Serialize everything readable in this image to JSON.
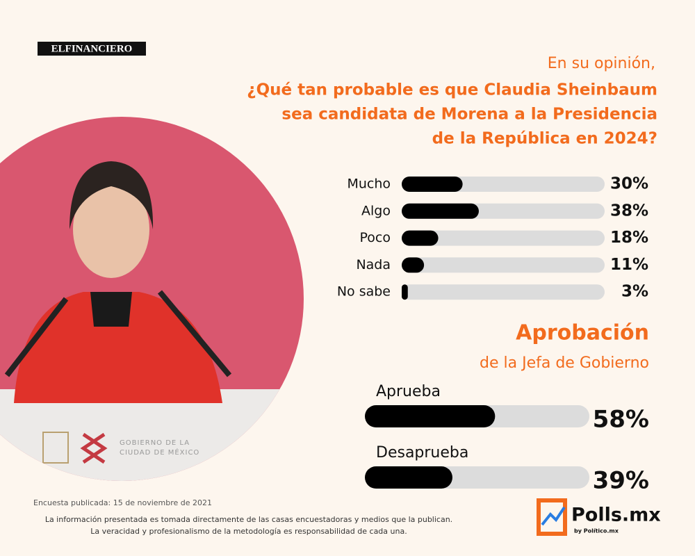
{
  "source": "ELFINANCIERO",
  "chart_data": [
    {
      "type": "bar",
      "subtitle": "En su opinión,",
      "title": [
        "¿Qué tan probable es que Claudia Sheinbaum",
        "sea candidata de Morena a la Presidencia",
        "de la República en 2024?"
      ],
      "categories": [
        "Mucho",
        "Algo",
        "Poco",
        "Nada",
        "No sabe"
      ],
      "values": [
        30,
        38,
        18,
        11,
        3
      ],
      "value_labels": [
        "30%",
        "38%",
        "18%",
        "11%",
        "3%"
      ],
      "xlim": [
        0,
        100
      ],
      "color": "#000000"
    },
    {
      "type": "bar",
      "title": "Aprobación",
      "subtitle": "de la Jefa de Gobierno",
      "categories": [
        "Aprueba",
        "Desaprueba"
      ],
      "values": [
        58,
        39
      ],
      "value_labels": [
        "58%",
        "39%"
      ],
      "xlim": [
        0,
        100
      ],
      "color": "#000000"
    }
  ],
  "photo_sign": [
    "GOBIERNO DE LA",
    "CIUDAD DE MÉXICO"
  ],
  "footer": {
    "date_note": "Encuesta publicada: 15 de noviembre de 2021",
    "disclaimer": [
      "La información presentada es tomada directamente de las casas encuestadoras y medios que la publican.",
      "La veracidad y profesionalismo de la metodología es responsabilidad de cada una."
    ]
  },
  "brand": {
    "name": "Polls.mx",
    "byline": "by Político.mx"
  }
}
